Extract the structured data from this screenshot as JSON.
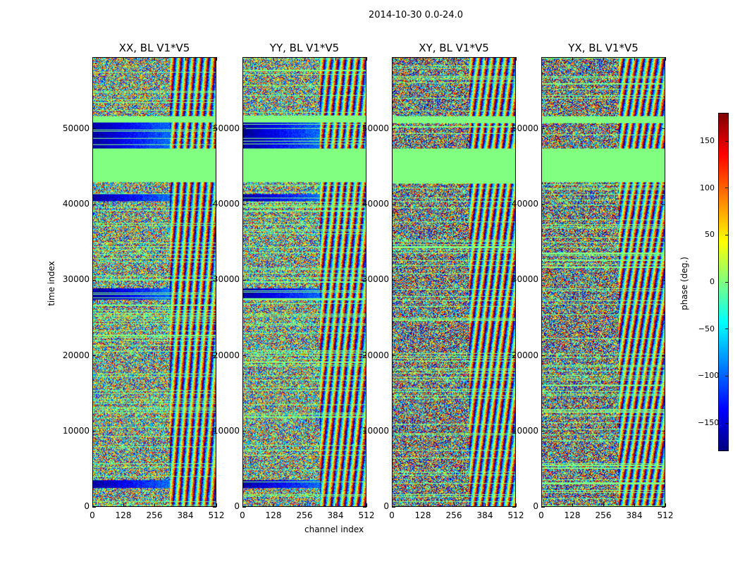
{
  "chart_data": {
    "type": "heatmap",
    "title": "2014-10-30 0.0-24.0",
    "panels": [
      {
        "title": "XX, BL V1*V5",
        "pol": "XX"
      },
      {
        "title": "YY, BL V1*V5",
        "pol": "YY"
      },
      {
        "title": "XY, BL V1*V5",
        "pol": "XY"
      },
      {
        "title": "YX, BL V1*V5",
        "pol": "YX"
      }
    ],
    "xlabel": "channel index",
    "ylabel": "time index",
    "xlim": [
      0,
      512
    ],
    "ylim": [
      0,
      59500
    ],
    "xticks": [
      0,
      128,
      256,
      384,
      512
    ],
    "xtick_labels": [
      "0",
      "128",
      "256",
      "384",
      "512"
    ],
    "yticks": [
      0,
      10000,
      20000,
      30000,
      40000,
      50000
    ],
    "ytick_labels": [
      "0",
      "10000",
      "20000",
      "30000",
      "40000",
      "50000"
    ],
    "colorbar": {
      "label": "phase (deg.)",
      "range": [
        -180,
        180
      ],
      "ticks": [
        -150,
        -100,
        -50,
        0,
        50,
        100,
        150
      ],
      "tick_labels": [
        "−150",
        "−100",
        "−50",
        "0",
        "50",
        "100",
        "150"
      ],
      "colormap": "jet"
    },
    "flagged_value_deg": 0,
    "flagged_time_ranges": [
      [
        43000,
        47500
      ],
      [
        51000,
        51800
      ]
    ]
  }
}
